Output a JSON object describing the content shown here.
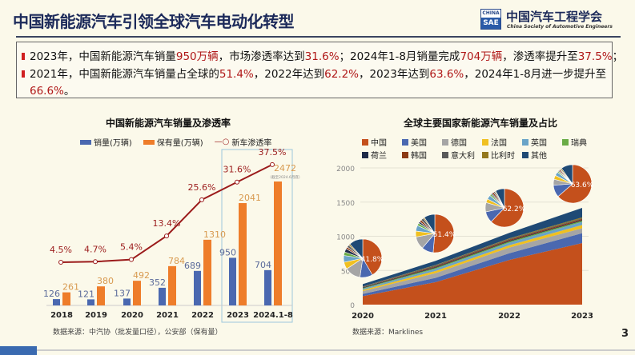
{
  "header": {
    "title": "中国新能源汽车引领全球汽车电动化转型",
    "logo": {
      "box_top": "CHINA",
      "box_bottom": "SAE",
      "name_cn": "中国汽车工程学会",
      "name_en": "China Society of Automotive Engineers"
    }
  },
  "summary": {
    "line1": [
      "2023年，中国新能源汽车销量",
      "950万辆",
      "，市场渗透率达到",
      "31.6%",
      "；2024年1-8月销量完成",
      "704万辆",
      "，渗透率提升至",
      "37.5%",
      "；"
    ],
    "line2": [
      "2021年，中国新能源汽车销量占全球的",
      "51.4%",
      "，2022年达到",
      "62.2%",
      "，2023年达到",
      "63.6%",
      "，2024年1-8月进一步提升至"
    ],
    "line3": [
      "66.6%",
      "。"
    ]
  },
  "page_number": "3",
  "colors": {
    "sales": "#4a68b0",
    "stock": "#ee7d2a",
    "rate": "#9b1b1b"
  },
  "chart_data": [
    {
      "type": "bar+line",
      "title": "中国新能源汽车销量及渗透率",
      "categories": [
        "2018",
        "2019",
        "2020",
        "2021",
        "2022",
        "2023",
        "2024.1-8"
      ],
      "series": [
        {
          "name": "销量(万辆)",
          "type": "bar",
          "values": [
            126,
            121,
            137,
            352,
            689,
            950,
            704
          ]
        },
        {
          "name": "保有量(万辆)",
          "type": "bar",
          "values": [
            261,
            380,
            492,
            784,
            1310,
            2041,
            2472
          ]
        },
        {
          "name": "新车渗透率",
          "type": "line",
          "values": [
            4.5,
            4.7,
            5.4,
            13.4,
            25.6,
            31.6,
            37.5
          ],
          "labels": [
            "4.5%",
            "4.7%",
            "5.4%",
            "13.4%",
            "25.6%",
            "31.6%",
            "37.5%"
          ]
        }
      ],
      "annotation": "（截至2024.6月底）",
      "highlight": [
        "2023",
        "2024.1-8"
      ],
      "source": "数据来源：中汽协（批发量口径），公安部（保有量）"
    },
    {
      "type": "area",
      "stacked": true,
      "title": "全球主要国家新能源汽车销量及占比",
      "x": [
        "2020",
        "2021",
        "2022",
        "2023"
      ],
      "ylim": [
        0,
        2000
      ],
      "yticks": [
        "0",
        "500",
        "1000",
        "1500",
        "2000"
      ],
      "series": [
        {
          "name": "中国",
          "color": "#c4501c",
          "values": [
            125,
            329,
            653,
            900
          ]
        },
        {
          "name": "美国",
          "color": "#4a68b0",
          "values": [
            32,
            63,
            99,
            146
          ]
        },
        {
          "name": "德国",
          "color": "#a5a5a5",
          "values": [
            40,
            69,
            83,
            71
          ]
        },
        {
          "name": "法国",
          "color": "#f0c020",
          "values": [
            18,
            32,
            34,
            48
          ]
        },
        {
          "name": "英国",
          "color": "#6aa4c8",
          "values": [
            17,
            31,
            37,
            45
          ]
        },
        {
          "name": "瑞典",
          "color": "#6aac46",
          "values": [
            9,
            14,
            16,
            16
          ]
        },
        {
          "name": "荷兰",
          "color": "#1e2a48",
          "values": [
            9,
            10,
            11,
            11
          ]
        },
        {
          "name": "韩国",
          "color": "#8c3a14",
          "values": [
            5,
            12,
            16,
            16
          ]
        },
        {
          "name": "意大利",
          "color": "#595959",
          "values": [
            6,
            14,
            12,
            10
          ]
        },
        {
          "name": "比利时",
          "color": "#94781c",
          "values": [
            4,
            7,
            9,
            14
          ]
        },
        {
          "name": "其他",
          "color": "#1f4a75",
          "values": [
            35,
            59,
            80,
            138
          ]
        }
      ],
      "pie_labels": [
        "41.8%",
        "51.4%",
        "62.2%",
        "63.6%"
      ],
      "source": "数据来源：Marklines"
    }
  ]
}
